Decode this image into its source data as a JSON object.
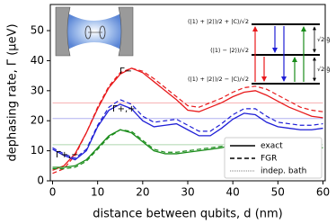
{
  "chart_data": {
    "type": "line",
    "xlabel": "distance between qubits, d (nm)",
    "ylabel": "dephasing rate, Γ (μeV)",
    "xlim": [
      -0.5,
      60.5
    ],
    "ylim": [
      0,
      58.7
    ],
    "xticks": [
      0,
      10,
      20,
      30,
      40,
      50,
      60
    ],
    "yticks": [
      0,
      10,
      20,
      30,
      40,
      50
    ],
    "x": [
      0,
      2.5,
      5,
      7.5,
      10,
      12.5,
      15,
      17.5,
      20,
      22.5,
      25,
      27.5,
      30,
      32.5,
      35,
      37.5,
      40,
      42.5,
      45,
      47.5,
      50,
      52.5,
      55,
      57.5,
      60
    ],
    "series": [
      {
        "name": "Γ−",
        "color": "#e8191b",
        "values": [
          3.5,
          5,
          9,
          16,
          24,
          31,
          35.5,
          37.5,
          36,
          33,
          30,
          27,
          23.5,
          23,
          24.5,
          26,
          28,
          29.5,
          30,
          28.5,
          26.5,
          24.5,
          23,
          21.5,
          21
        ],
        "fgr": [
          2.5,
          4,
          8.5,
          16,
          24.5,
          31.5,
          36,
          37.5,
          36.5,
          34,
          31,
          28,
          25,
          24.5,
          26,
          27.5,
          29.5,
          31,
          31.5,
          30.5,
          28.5,
          26.5,
          24.5,
          23.5,
          23
        ],
        "indep_bath": 26
      },
      {
        "name": "Γ+,+",
        "color": "#1f1fd6",
        "values": [
          10.5,
          8.5,
          7,
          10,
          18,
          23.5,
          25.5,
          24,
          20,
          18,
          18.5,
          19,
          17,
          15,
          15,
          17.5,
          20.5,
          22.5,
          22,
          19.5,
          18,
          17.5,
          17,
          17,
          17.5
        ],
        "fgr": [
          11,
          9,
          7.5,
          10.5,
          18.5,
          24.5,
          27,
          25.5,
          21.5,
          19.5,
          20,
          20.5,
          18.5,
          16.5,
          16.5,
          19,
          22,
          24,
          24,
          21.5,
          19.5,
          19,
          18.5,
          18.5,
          19
        ],
        "indep_bath": 20.7
      },
      {
        "name": "Γ+,−",
        "color": "#1a8c1a",
        "values": [
          4.5,
          4.5,
          5,
          7,
          11,
          15,
          17,
          16,
          13,
          10,
          9,
          9,
          9.5,
          10,
          10.5,
          11,
          12,
          13,
          13.5,
          13.5,
          13,
          12,
          11.5,
          11,
          11
        ],
        "fgr": [
          4,
          4,
          4.5,
          6.5,
          10.5,
          14.5,
          17,
          16.5,
          13.5,
          10.5,
          9.5,
          9.5,
          10,
          10.5,
          11,
          11.5,
          12.5,
          13.5,
          14,
          14,
          13.5,
          12.5,
          12,
          11.5,
          11.5
        ],
        "indep_bath": 12
      }
    ],
    "legend": [
      {
        "label": "exact",
        "dash": "solid"
      },
      {
        "label": "FGR",
        "dash": "dashed"
      },
      {
        "label": "indep. bath",
        "dash": "dotted"
      }
    ],
    "level_diagram": {
      "levels": [
        "(|1⟩ + |2⟩)/2 + |C⟩/√2",
        "(|1⟩ − |2⟩)/√2",
        "(|1⟩ + |2⟩)/2 − |C⟩/√2"
      ],
      "gaps": [
        "√2 g̃",
        "√2 g̃"
      ]
    }
  }
}
